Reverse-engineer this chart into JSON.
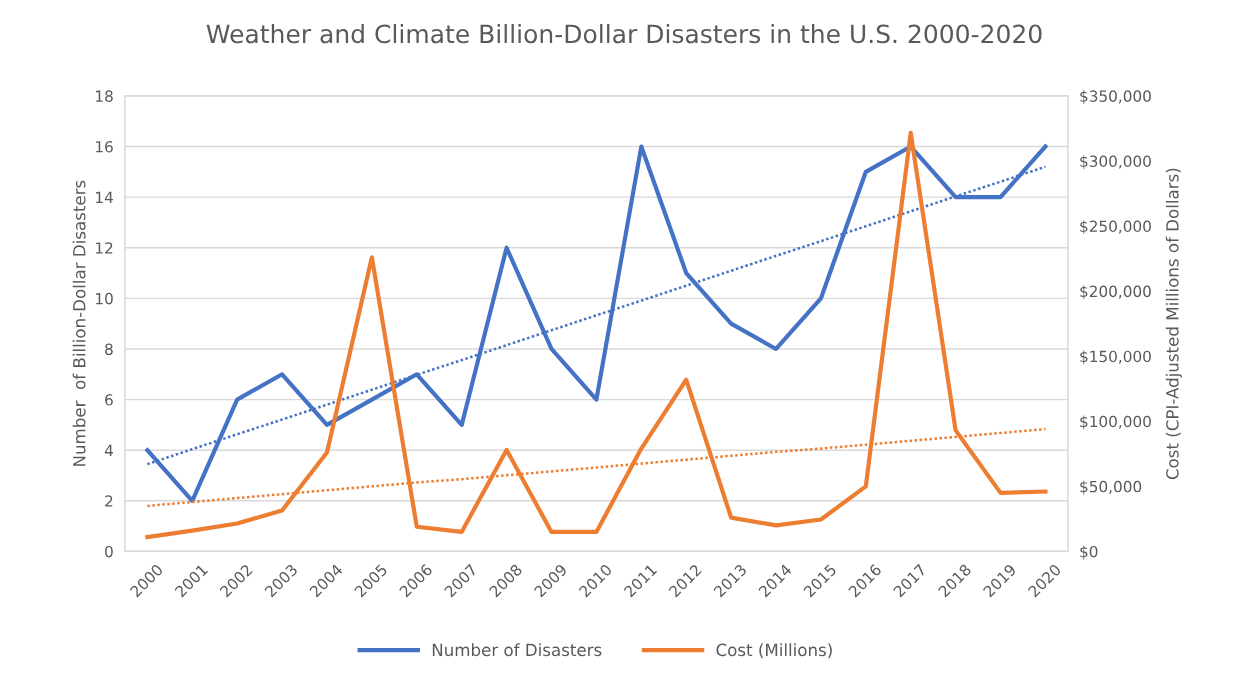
{
  "chart_data": {
    "type": "line",
    "title": "Weather and Climate Billion-Dollar Disasters in the U.S. 2000-2020",
    "ylabel": "Number  of Billion-Dollar Disasters",
    "y2label": "Cost (CPI-Adjusted Millions of Dollars)",
    "categories": [
      "2000",
      "2001",
      "2002",
      "2003",
      "2004",
      "2005",
      "2006",
      "2007",
      "2008",
      "2009",
      "2010",
      "2011",
      "2012",
      "2013",
      "2014",
      "2015",
      "2016",
      "2017",
      "2018",
      "2019",
      "2020"
    ],
    "series": [
      {
        "name": "Number of Disasters",
        "color": "#4472c4",
        "values": [
          4,
          2,
          6,
          7,
          5,
          6,
          7,
          5,
          12,
          8,
          6,
          16,
          11,
          9,
          8,
          10,
          15,
          16,
          14,
          14,
          16
        ]
      },
      {
        "name": "Cost (Millions)",
        "color": "#ed7d31",
        "axis": "y2",
        "values": [
          11000,
          16000,
          21500,
          31500,
          76000,
          226000,
          19000,
          15000,
          78000,
          15000,
          15000,
          79000,
          132000,
          26000,
          20000,
          24500,
          50000,
          321600,
          93000,
          45000,
          46000
        ]
      },
      {
        "color": "#4472c4",
        "line_style": "dotted",
        "values": [
          3.45,
          4.04,
          4.63,
          5.21,
          5.8,
          6.39,
          6.98,
          7.56,
          8.15,
          8.74,
          9.33,
          9.91,
          10.5,
          11.09,
          11.68,
          12.26,
          12.85,
          13.44,
          14.03,
          14.61,
          15.2
        ]
      },
      {
        "color": "#ed7d31",
        "line_style": "dotted",
        "axis": "y2",
        "values": [
          35000,
          38000,
          41000,
          44000,
          47000,
          50000,
          53000,
          55500,
          58500,
          61500,
          64500,
          67500,
          70500,
          73500,
          76500,
          79000,
          82000,
          85000,
          88000,
          91000,
          94000
        ]
      }
    ],
    "ylim": [
      0,
      18
    ],
    "yticks": [
      0,
      2,
      4,
      6,
      8,
      10,
      12,
      14,
      16,
      18
    ],
    "y2lim": [
      0,
      350000
    ],
    "y2ticks": [
      {
        "value": 0,
        "label": "$0"
      },
      {
        "value": 50000,
        "label": "$50,000"
      },
      {
        "value": 100000,
        "label": "$100,000"
      },
      {
        "value": 150000,
        "label": "$150,000"
      },
      {
        "value": 200000,
        "label": "$200,000"
      },
      {
        "value": 250000,
        "label": "$250,000"
      },
      {
        "value": 300000,
        "label": "$300,000"
      },
      {
        "value": 350000,
        "label": "$350,000"
      }
    ],
    "grid": "y",
    "legend": "bottom",
    "marker": "none",
    "line_style": "solid"
  }
}
